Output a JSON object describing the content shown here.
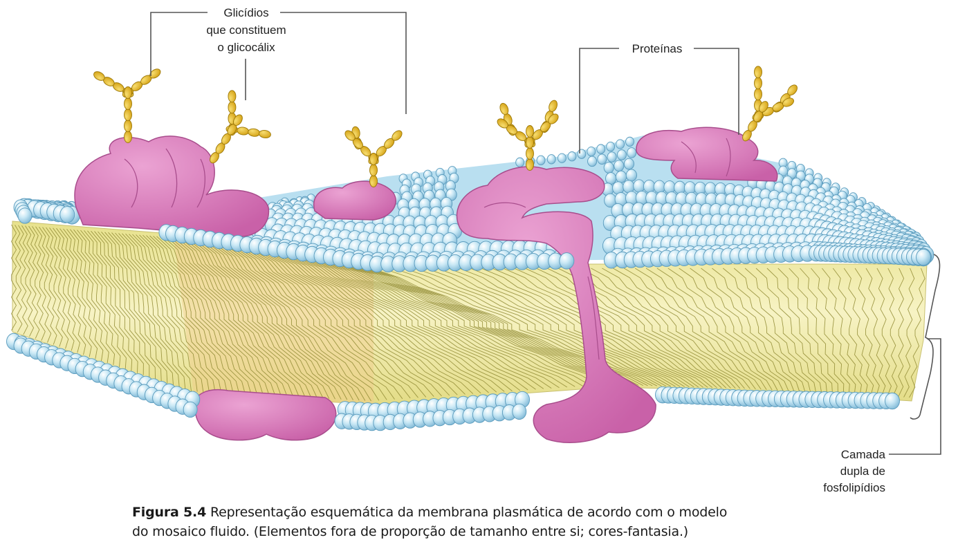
{
  "labels": {
    "glycids": [
      "Glicídios",
      "que constituem",
      "o glicocálix"
    ],
    "proteins": "Proteínas",
    "bilayer": [
      "Camada",
      "dupla de",
      "fosfolipídios"
    ]
  },
  "caption": {
    "figure": "Figura 5.4",
    "line1": "Representação esquemática da membrana plasmática de acordo com o modelo",
    "line2": "do mosaico fluido. (Elementos fora de proporção de tamanho entre si; cores-fantasia.)"
  },
  "colors": {
    "head": "#bfe3f2",
    "head_stroke": "#5a9bbd",
    "tail": "#ece79b",
    "tail_line": "#8f8a33",
    "protein": "#d77ab8",
    "protein_stroke": "#a84d8c",
    "sugar": "#e2b21c",
    "sugar_stroke": "#9c7808",
    "leader": "#555555"
  }
}
